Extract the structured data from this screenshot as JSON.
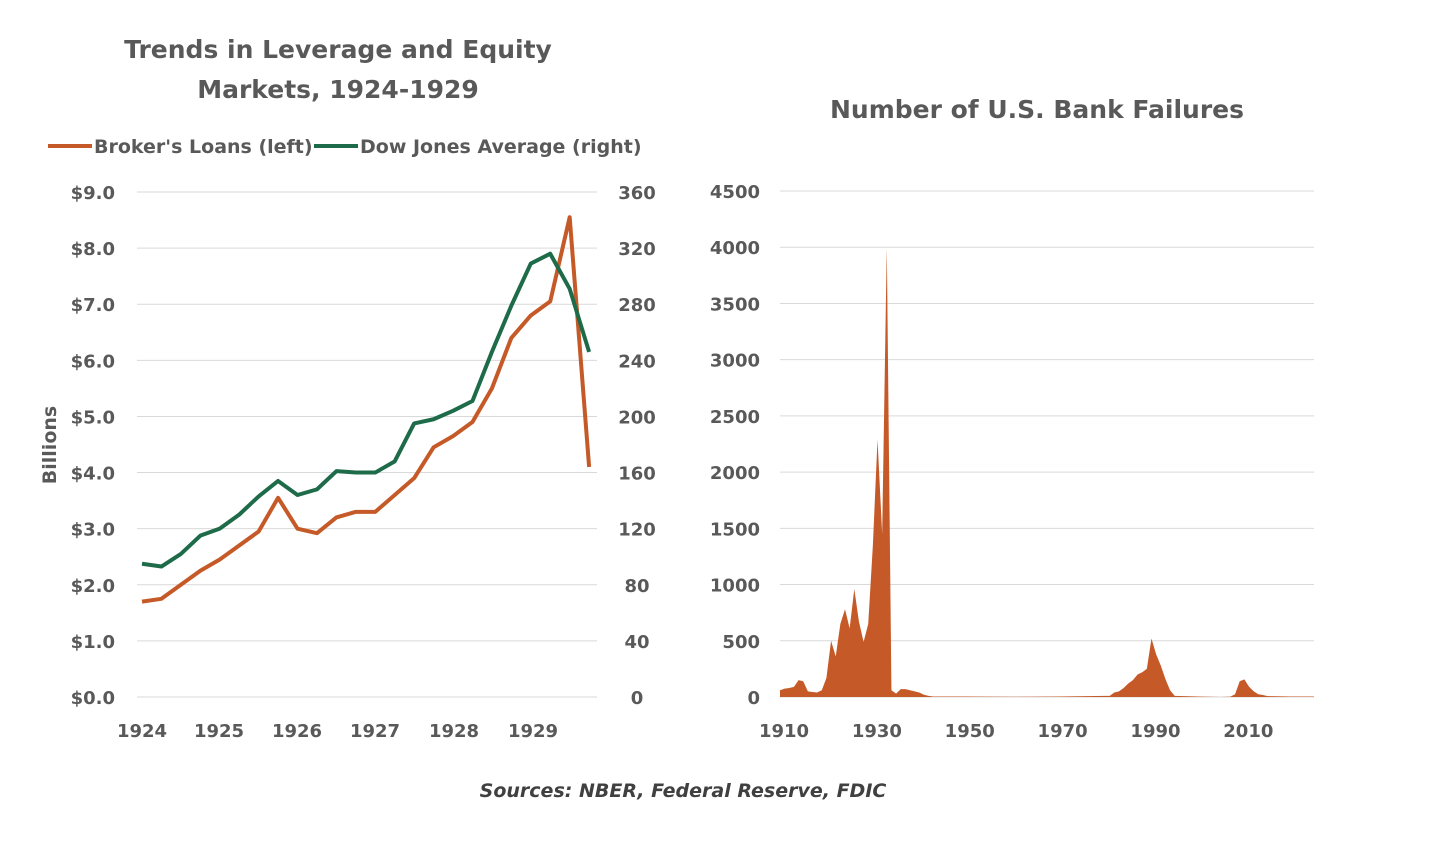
{
  "colors": {
    "brokers_loans": "#c55a28",
    "dow_jones": "#1e6b4a",
    "bank_failures": "#c55a28",
    "grid": "#d9d9d9",
    "text": "#595959"
  },
  "source_note": "Sources: NBER, Federal Reserve, FDIC",
  "chart_data": [
    {
      "type": "line",
      "title_line1": "Trends in Leverage and Equity",
      "title_line2": "Markets, 1924-1929",
      "ylabel": "Billions",
      "legend_placement": "top",
      "grid": true,
      "xlim": [
        1924,
        1929.8
      ],
      "x_ticks": [
        {
          "value": 1924,
          "label": "1924"
        },
        {
          "value": 1925,
          "label": "1925"
        },
        {
          "value": 1926,
          "label": "1926"
        },
        {
          "value": 1927,
          "label": "1927"
        },
        {
          "value": 1928,
          "label": "1928"
        },
        {
          "value": 1929,
          "label": "1929"
        }
      ],
      "y_left_lim": [
        0,
        9
      ],
      "y_left_ticks": [
        {
          "value": 0,
          "label": "$0.0"
        },
        {
          "value": 1,
          "label": "$1.0"
        },
        {
          "value": 2,
          "label": "$2.0"
        },
        {
          "value": 3,
          "label": "$3.0"
        },
        {
          "value": 4,
          "label": "$4.0"
        },
        {
          "value": 5,
          "label": "$5.0"
        },
        {
          "value": 6,
          "label": "$6.0"
        },
        {
          "value": 7,
          "label": "$7.0"
        },
        {
          "value": 8,
          "label": "$8.0"
        },
        {
          "value": 9,
          "label": "$9.0"
        }
      ],
      "y_right_lim": [
        0,
        360
      ],
      "y_right_ticks": [
        {
          "value": 0,
          "label": "0"
        },
        {
          "value": 40,
          "label": "40"
        },
        {
          "value": 80,
          "label": "80"
        },
        {
          "value": 120,
          "label": "120"
        },
        {
          "value": 160,
          "label": "160"
        },
        {
          "value": 200,
          "label": "200"
        },
        {
          "value": 240,
          "label": "240"
        },
        {
          "value": 280,
          "label": "280"
        },
        {
          "value": 320,
          "label": "320"
        },
        {
          "value": 360,
          "label": "360"
        }
      ],
      "series": [
        {
          "name": "Broker's Loans (left)",
          "axis": "left",
          "x": [
            1924.0,
            1924.25,
            1924.5,
            1924.75,
            1925.0,
            1925.25,
            1925.5,
            1925.75,
            1926.0,
            1926.25,
            1926.5,
            1926.75,
            1927.0,
            1927.25,
            1927.5,
            1927.75,
            1928.0,
            1928.25,
            1928.5,
            1928.75,
            1929.0,
            1929.25,
            1929.5,
            1929.75
          ],
          "values": [
            1.7,
            1.75,
            2.0,
            2.25,
            2.45,
            2.7,
            2.95,
            3.55,
            3.0,
            2.92,
            3.2,
            3.3,
            3.3,
            3.6,
            3.9,
            4.45,
            4.65,
            4.9,
            5.5,
            6.4,
            6.8,
            7.05,
            8.55,
            4.1
          ]
        },
        {
          "name": "Dow Jones Average (right)",
          "axis": "right",
          "x": [
            1924.0,
            1924.25,
            1924.5,
            1924.75,
            1925.0,
            1925.25,
            1925.5,
            1925.75,
            1926.0,
            1926.25,
            1926.5,
            1926.75,
            1927.0,
            1927.25,
            1927.5,
            1927.75,
            1928.0,
            1928.25,
            1928.5,
            1928.75,
            1929.0,
            1929.25,
            1929.5,
            1929.75
          ],
          "values": [
            95,
            93,
            102,
            115,
            120,
            130,
            143,
            154,
            144,
            148,
            161,
            160,
            160,
            168,
            195,
            198,
            204,
            211,
            246,
            279,
            309,
            316,
            291,
            246
          ]
        }
      ]
    },
    {
      "type": "area",
      "title": "Number of U.S. Bank Failures",
      "grid": true,
      "xlim": [
        1910,
        2025
      ],
      "ylim": [
        0,
        4500
      ],
      "x_ticks": [
        {
          "value": 1910,
          "label": "1910"
        },
        {
          "value": 1930,
          "label": "1930"
        },
        {
          "value": 1950,
          "label": "1950"
        },
        {
          "value": 1970,
          "label": "1970"
        },
        {
          "value": 1990,
          "label": "1990"
        },
        {
          "value": 2010,
          "label": "2010"
        }
      ],
      "y_ticks": [
        {
          "value": 0,
          "label": "0"
        },
        {
          "value": 500,
          "label": "500"
        },
        {
          "value": 1000,
          "label": "1000"
        },
        {
          "value": 1500,
          "label": "1500"
        },
        {
          "value": 2000,
          "label": "2000"
        },
        {
          "value": 2500,
          "label": "2500"
        },
        {
          "value": 3000,
          "label": "3000"
        },
        {
          "value": 3500,
          "label": "3500"
        },
        {
          "value": 4000,
          "label": "4000"
        },
        {
          "value": 4500,
          "label": "4500"
        }
      ],
      "x": [
        1910,
        1911,
        1912,
        1913,
        1914,
        1915,
        1916,
        1917,
        1918,
        1919,
        1920,
        1921,
        1922,
        1923,
        1924,
        1925,
        1926,
        1927,
        1928,
        1929,
        1930,
        1931,
        1932,
        1933,
        1934,
        1935,
        1936,
        1937,
        1938,
        1939,
        1940,
        1941,
        1942,
        1943,
        1950,
        1960,
        1970,
        1980,
        1981,
        1982,
        1983,
        1984,
        1985,
        1986,
        1987,
        1988,
        1989,
        1990,
        1991,
        1992,
        1993,
        1994,
        1995,
        2000,
        2005,
        2007,
        2008,
        2009,
        2010,
        2011,
        2012,
        2013,
        2014,
        2015,
        2020,
        2025
      ],
      "values": [
        60,
        75,
        80,
        90,
        150,
        140,
        50,
        45,
        40,
        60,
        170,
        500,
        360,
        650,
        780,
        610,
        960,
        670,
        490,
        650,
        1350,
        2290,
        1450,
        4000,
        60,
        30,
        70,
        70,
        60,
        50,
        40,
        20,
        10,
        5,
        5,
        2,
        5,
        10,
        10,
        40,
        50,
        80,
        120,
        150,
        200,
        220,
        250,
        520,
        380,
        280,
        160,
        60,
        10,
        5,
        0,
        3,
        25,
        140,
        157,
        92,
        51,
        24,
        18,
        8,
        4,
        5
      ]
    }
  ]
}
